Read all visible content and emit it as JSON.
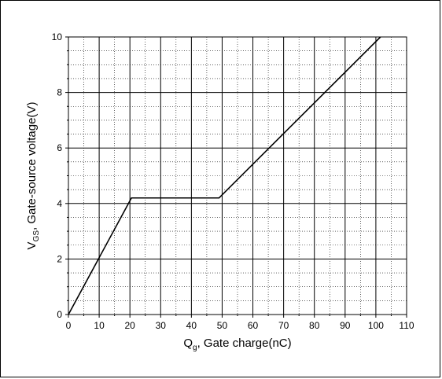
{
  "chart_data": {
    "type": "line",
    "title": "",
    "xlabel": {
      "main": "Q",
      "sub": "g",
      "rest": ", Gate charge(nC)"
    },
    "ylabel": {
      "main": "V",
      "sub": "GS",
      "rest": ", Gate-source voltage(V)"
    },
    "xlim": [
      0,
      110
    ],
    "ylim": [
      0,
      10
    ],
    "x_ticks": [
      0,
      10,
      20,
      30,
      40,
      50,
      60,
      70,
      80,
      90,
      100,
      110
    ],
    "y_ticks": [
      0,
      2,
      4,
      6,
      8,
      10
    ],
    "x_minor_step": 5,
    "y_minor_step": 0.5,
    "grid": true,
    "series": [
      {
        "x": [
          0,
          20.5,
          49.0,
          101.5
        ],
        "y": [
          0,
          4.2,
          4.2,
          10.0
        ],
        "color": "#000000"
      }
    ]
  }
}
